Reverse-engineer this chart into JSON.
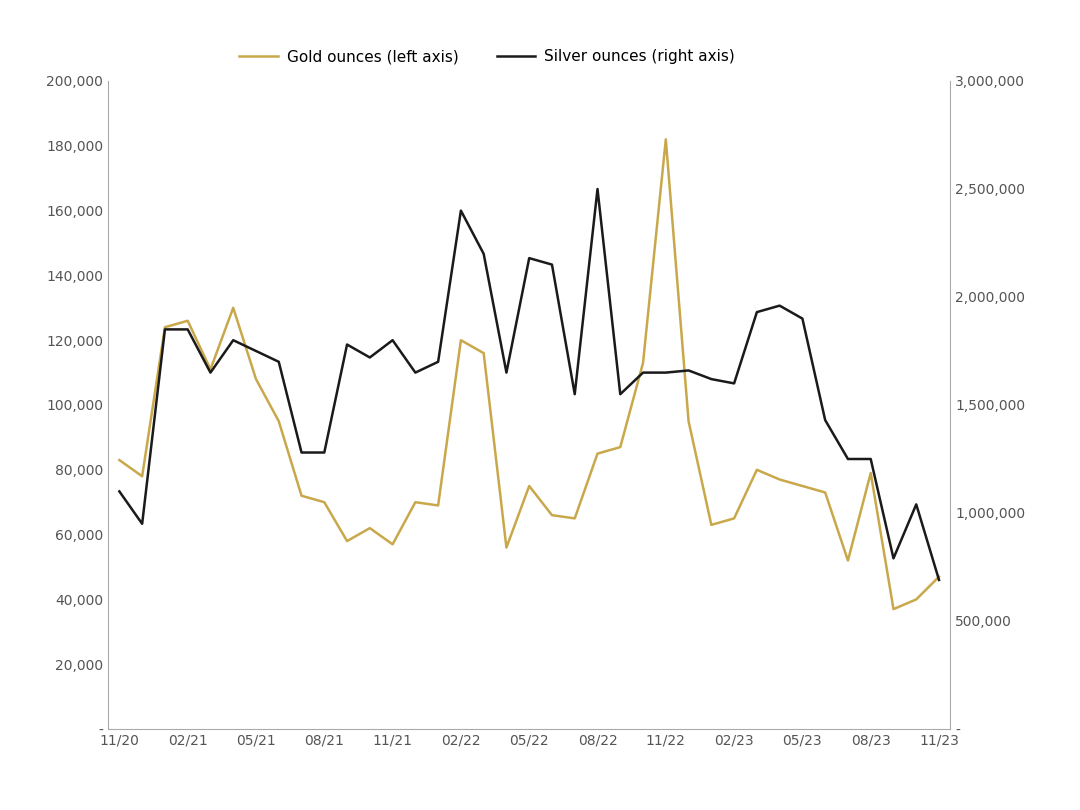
{
  "gold_values": [
    83000,
    78000,
    124000,
    126000,
    111000,
    130000,
    108000,
    95000,
    72000,
    70000,
    58000,
    62000,
    57000,
    70000,
    69000,
    120000,
    116000,
    56000,
    75000,
    66000,
    65000,
    85000,
    87000,
    113000,
    182000,
    95000,
    63000,
    65000,
    80000,
    77000,
    75000,
    73000,
    52000,
    79000,
    37000,
    40000,
    47000
  ],
  "silver_values": [
    1100000,
    950000,
    1850000,
    1850000,
    1650000,
    1800000,
    1750000,
    1700000,
    1280000,
    1280000,
    1780000,
    1720000,
    1800000,
    1650000,
    1700000,
    2400000,
    2200000,
    1650000,
    2180000,
    2150000,
    1550000,
    2500000,
    1550000,
    1650000,
    1650000,
    1660000,
    1620000,
    1600000,
    1930000,
    1960000,
    1900000,
    1430000,
    1250000,
    1250000,
    790000,
    1040000,
    690000
  ],
  "gold_color": "#C9A84C",
  "silver_color": "#1a1a1a",
  "gold_label": "Gold ounces (left axis)",
  "silver_label": "Silver ounces (right axis)",
  "left_ylim": [
    0,
    200000
  ],
  "right_ylim": [
    0,
    3000000
  ],
  "left_yticks": [
    0,
    20000,
    40000,
    60000,
    80000,
    100000,
    120000,
    140000,
    160000,
    180000,
    200000
  ],
  "right_yticks": [
    0,
    500000,
    1000000,
    1500000,
    2000000,
    2500000,
    3000000
  ],
  "tick_positions": [
    0,
    3,
    6,
    9,
    12,
    15,
    18,
    21,
    24,
    27,
    30,
    33,
    36
  ],
  "tick_labels": [
    "11/20",
    "02/21",
    "05/21",
    "08/21",
    "11/21",
    "02/22",
    "05/22",
    "08/22",
    "11/22",
    "02/23",
    "05/23",
    "08/23",
    "11/23"
  ],
  "background_color": "#ffffff",
  "line_width": 1.8
}
